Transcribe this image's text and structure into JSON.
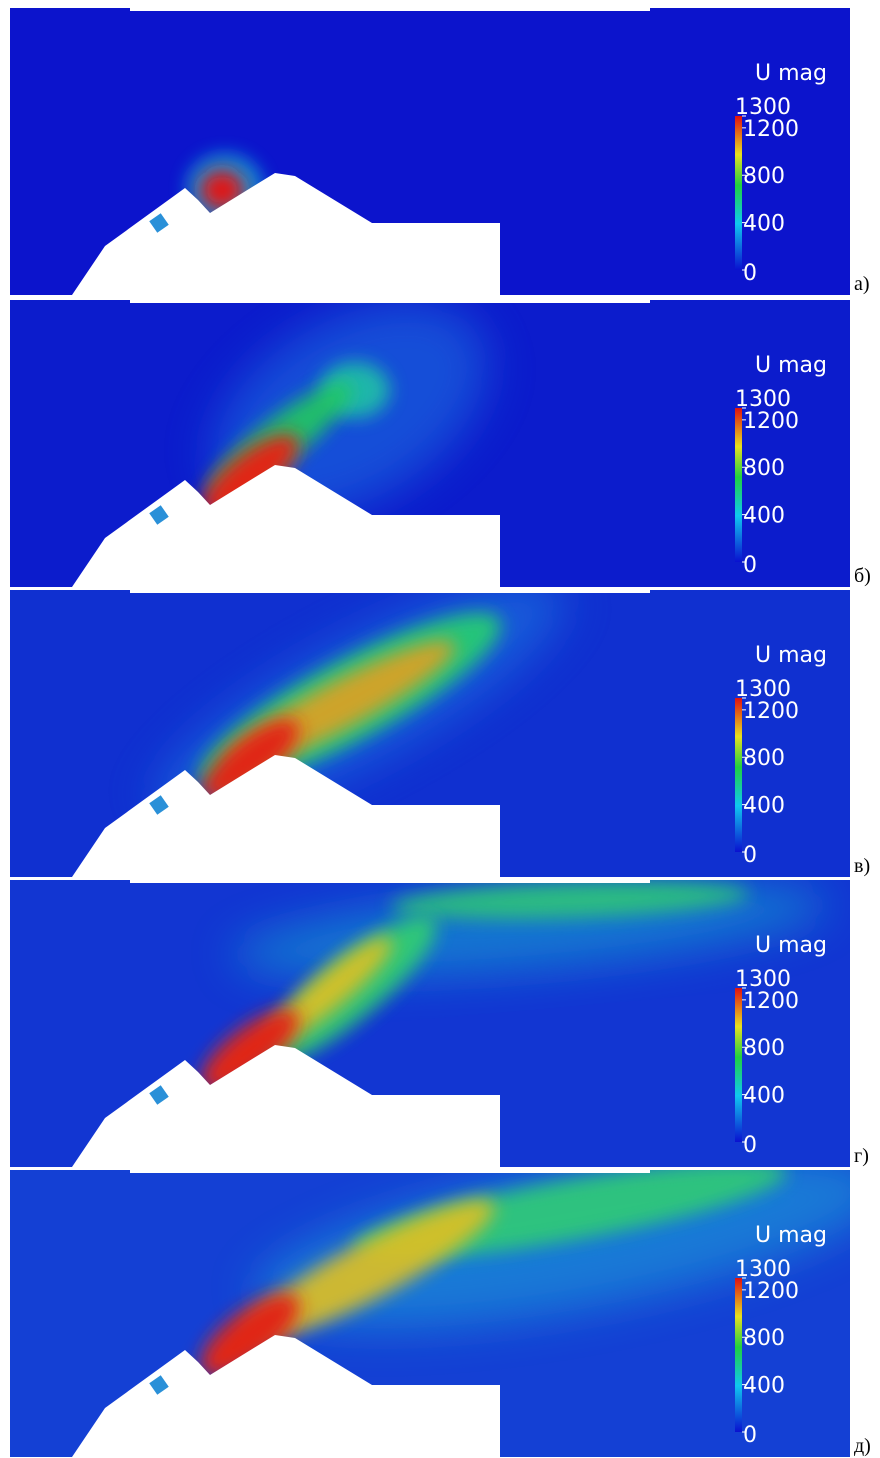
{
  "colorbar": {
    "title": "U mag",
    "range": [
      0,
      1300
    ],
    "ticks": [
      0,
      400,
      800,
      1200,
      1300
    ]
  },
  "panels": [
    {
      "label": "а)"
    },
    {
      "label": "б)"
    },
    {
      "label": "в)"
    },
    {
      "label": "г)"
    },
    {
      "label": "д)"
    }
  ]
}
